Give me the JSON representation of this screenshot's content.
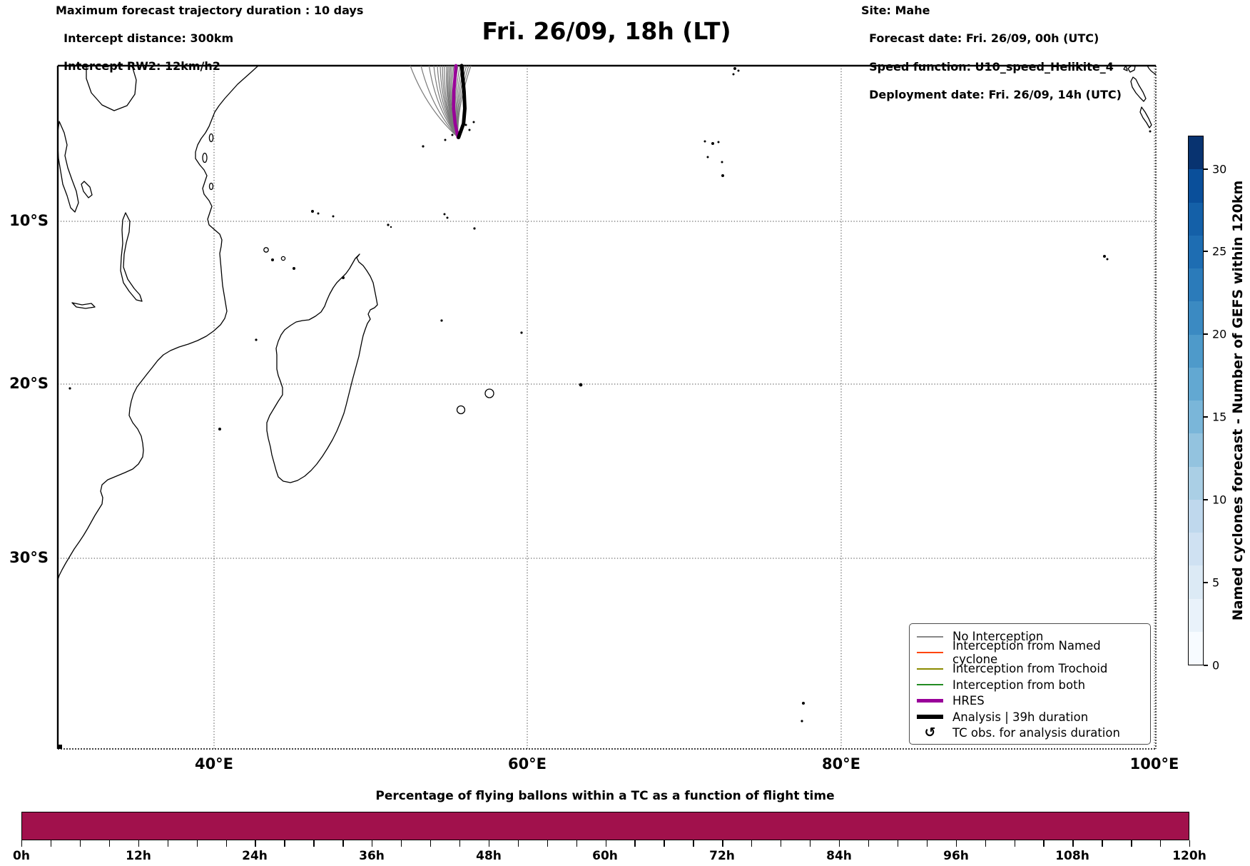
{
  "header": {
    "left": {
      "line1": "Maximum forecast trajectory duration : 10 days",
      "line2": "Intercept distance: 300km",
      "line3": "Intercept RW2: 12km/h2"
    },
    "title": "Fri. 26/09, 18h (LT)",
    "right": {
      "line1": "Site: Mahe",
      "line2": "Forecast date: Fri. 26/09, 00h (UTC)",
      "line3": "Speed function: U10_speed_Helikite_4",
      "line4": "Deployment date: Fri. 26/09, 14h (UTC)"
    }
  },
  "map": {
    "x_tick_labels": [
      "40°E",
      "60°E",
      "80°E",
      "100°E"
    ],
    "y_tick_labels": [
      "10°S",
      "20°S",
      "30°S"
    ]
  },
  "legend": {
    "items": [
      {
        "label": "No Interception",
        "color": "#888888",
        "weight": "thin"
      },
      {
        "label": "Interception from Named cyclone",
        "color": "#ff4500",
        "weight": "thin"
      },
      {
        "label": "Interception from Trochoid",
        "color": "#8B8B00",
        "weight": "thin"
      },
      {
        "label": "Interception from both",
        "color": "#228B22",
        "weight": "thin"
      },
      {
        "label": "HRES",
        "color": "#990099",
        "weight": "thick"
      },
      {
        "label": "Analysis | 39h duration",
        "color": "#000000",
        "weight": "thick"
      },
      {
        "label": "TC obs. for analysis duration",
        "icon": "↺",
        "icon_name": "tc-obs-rotation-icon"
      }
    ]
  },
  "colorbar": {
    "title": "Named cyclones forecast - Number of GEFS within 120km",
    "ticks": [
      "0",
      "5",
      "10",
      "15",
      "20",
      "25",
      "30"
    ],
    "range": [
      0,
      32
    ],
    "segment_colors": [
      "#f7fbff",
      "#e9f2fa",
      "#dceaf5",
      "#cfe1f2",
      "#bfd8ed",
      "#aacfe5",
      "#93c3df",
      "#7ab6d9",
      "#62a8d2",
      "#4e9aca",
      "#3b8ac2",
      "#2b7bba",
      "#1e6db2",
      "#1460a8",
      "#0a4f9a",
      "#083370"
    ]
  },
  "bottom": {
    "title": "Percentage of flying ballons within a TC as a function of flight time",
    "tick_labels": [
      "0h",
      "12h",
      "24h",
      "36h",
      "48h",
      "60h",
      "72h",
      "84h",
      "96h",
      "108h",
      "120h"
    ],
    "bar_color": "#A1114C"
  },
  "chart_data": [
    {
      "type": "line",
      "title": "Fri. 26/09, 18h (LT)",
      "description": "Balloon forecast trajectories over the western Indian Ocean map",
      "map_extent": {
        "lon_min_e": 30.0,
        "lon_max_e": 100.1,
        "lat_min_s": 0.76,
        "lat_max_s": 41.3
      },
      "x_tick_labels": [
        "40°E",
        "60°E",
        "80°E",
        "100°E"
      ],
      "y_tick_labels": [
        "10°S",
        "20°S",
        "30°S"
      ],
      "grid": "dotted",
      "deployment_site": {
        "name": "Mahe",
        "lon_e": 55.57,
        "lat_s": 4.97
      },
      "trajectories": {
        "origin_lon": 55.57,
        "origin_lat_s": 5.02,
        "gray_color": "#7a7a7a",
        "gray_member_top_lons": [
          52.52,
          53.2,
          53.72,
          54.02,
          54.25,
          54.43,
          54.57,
          54.7,
          54.84,
          54.93,
          55.02,
          55.11,
          55.2,
          55.3,
          55.43,
          55.57,
          55.7,
          55.84,
          55.98,
          56.11,
          56.25,
          56.39
        ],
        "hres_points": [
          [
            55.57,
            5.02
          ],
          [
            55.38,
            4.2
          ],
          [
            55.28,
            3.3
          ],
          [
            55.3,
            2.3
          ],
          [
            55.38,
            1.4
          ],
          [
            55.43,
            0.76
          ]
        ],
        "analysis_points": [
          [
            55.6,
            5.02
          ],
          [
            55.92,
            4.2
          ],
          [
            56.0,
            3.3
          ],
          [
            55.95,
            2.3
          ],
          [
            55.86,
            1.4
          ],
          [
            55.8,
            0.76
          ]
        ]
      },
      "colorbar": {
        "label": "Named cyclones forecast - Number of GEFS within 120km",
        "range": [
          0,
          32
        ],
        "tick_values": [
          0,
          5,
          10,
          15,
          20,
          25,
          30
        ]
      },
      "legend_entries": [
        "No Interception",
        "Interception from Named cyclone",
        "Interception from Trochoid",
        "Interception from both",
        "HRES",
        "Analysis | 39h duration",
        "TC obs. for analysis duration"
      ]
    },
    {
      "type": "bar",
      "title": "Percentage of flying ballons within a TC as a function of flight time",
      "categories": [
        "0h",
        "12h",
        "24h",
        "36h",
        "48h",
        "60h",
        "72h",
        "84h",
        "96h",
        "108h",
        "120h"
      ],
      "values": [
        100,
        100,
        100,
        100,
        100,
        100,
        100,
        100,
        100,
        100,
        100
      ],
      "ylim": [
        0,
        100
      ],
      "bar_color": "#A1114C",
      "x_range_hours": [
        0,
        120
      ],
      "minor_tick_hours": 3
    }
  ]
}
